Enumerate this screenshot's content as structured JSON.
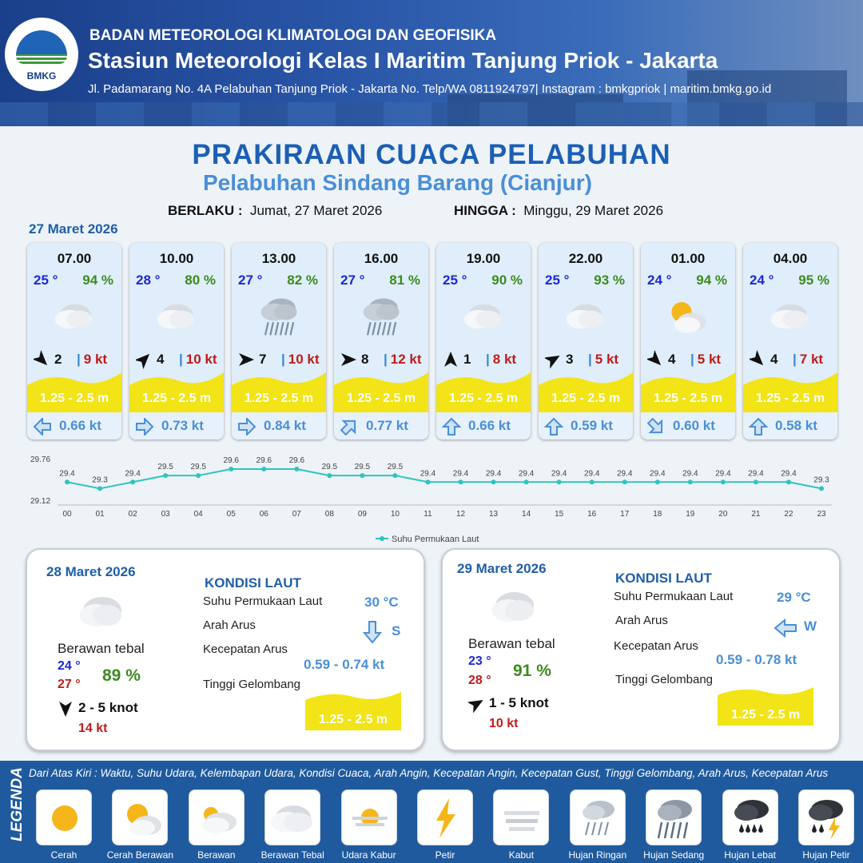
{
  "header": {
    "org": "BADAN METEOROLOGI KLIMATOLOGI DAN GEOFISIKA",
    "station": "Stasiun Meteorologi Kelas I Maritim Tanjung Priok - Jakarta",
    "address": "Jl. Padamarang No. 4A Pelabuhan Tanjung Priok - Jakarta No. Telp/WA 0811924797| Instagram : bmkgpriok | maritim.bmkg.go.id",
    "logo_text": "BMKG"
  },
  "title": "PRAKIRAAN CUACA PELABUHAN",
  "subtitle": "Pelabuhan Sindang Barang (Cianjur)",
  "validity": {
    "from_label": "BERLAKU :",
    "from_value": "Jumat, 27 Maret 2026",
    "to_label": "HINGGA :",
    "to_value": "Minggu, 29 Maret 2026"
  },
  "day1_date": "27 Maret 2026",
  "hourly": [
    {
      "time": "07.00",
      "temp": "25 °",
      "hum": "94 %",
      "wx": "berawan-tebal-icon",
      "wind_dir_deg": 135,
      "wind": "2",
      "gust": "9 kt",
      "wave": "1.25 - 2.5 m",
      "cur_dir_deg": 270,
      "cur": "0.66 kt"
    },
    {
      "time": "10.00",
      "temp": "28 °",
      "hum": "80 %",
      "wx": "berawan-tebal-icon",
      "wind_dir_deg": 45,
      "wind": "4",
      "gust": "10 kt",
      "wave": "1.25 - 2.5 m",
      "cur_dir_deg": 90,
      "cur": "0.73 kt"
    },
    {
      "time": "13.00",
      "temp": "27 °",
      "hum": "82 %",
      "wx": "hujan-ringan-icon",
      "wind_dir_deg": 90,
      "wind": "7",
      "gust": "10 kt",
      "wave": "1.25 - 2.5 m",
      "cur_dir_deg": 90,
      "cur": "0.84 kt"
    },
    {
      "time": "16.00",
      "temp": "27 °",
      "hum": "81 %",
      "wx": "hujan-ringan-icon",
      "wind_dir_deg": 90,
      "wind": "8",
      "gust": "12 kt",
      "wave": "1.25 - 2.5 m",
      "cur_dir_deg": 45,
      "cur": "0.77 kt"
    },
    {
      "time": "19.00",
      "temp": "25 °",
      "hum": "90 %",
      "wx": "berawan-tebal-icon",
      "wind_dir_deg": 0,
      "wind": "1",
      "gust": "8 kt",
      "wave": "1.25 - 2.5 m",
      "cur_dir_deg": 0,
      "cur": "0.66 kt"
    },
    {
      "time": "22.00",
      "temp": "25 °",
      "hum": "93 %",
      "wx": "berawan-tebal-icon",
      "wind_dir_deg": 60,
      "wind": "3",
      "gust": "5 kt",
      "wave": "1.25 - 2.5 m",
      "cur_dir_deg": 0,
      "cur": "0.59 kt"
    },
    {
      "time": "01.00",
      "temp": "24 °",
      "hum": "94 %",
      "wx": "cerah-berawan-icon",
      "wind_dir_deg": 135,
      "wind": "4",
      "gust": "5 kt",
      "wave": "1.25 - 2.5 m",
      "cur_dir_deg": 135,
      "cur": "0.60 kt"
    },
    {
      "time": "04.00",
      "temp": "24 °",
      "hum": "95 %",
      "wx": "berawan-tebal-icon",
      "wind_dir_deg": 135,
      "wind": "4",
      "gust": "7 kt",
      "wave": "1.25 - 2.5 m",
      "cur_dir_deg": 0,
      "cur": "0.58 kt"
    }
  ],
  "chart_data": {
    "type": "line",
    "categories": [
      "00",
      "01",
      "02",
      "03",
      "04",
      "05",
      "06",
      "07",
      "08",
      "09",
      "10",
      "11",
      "12",
      "13",
      "14",
      "15",
      "16",
      "17",
      "18",
      "19",
      "20",
      "21",
      "22",
      "23"
    ],
    "series": [
      {
        "name": "Suhu Permukaan Laut",
        "values": [
          29.4,
          29.3,
          29.4,
          29.5,
          29.5,
          29.6,
          29.6,
          29.6,
          29.5,
          29.5,
          29.5,
          29.4,
          29.4,
          29.4,
          29.4,
          29.4,
          29.4,
          29.4,
          29.4,
          29.4,
          29.4,
          29.4,
          29.4,
          29.3
        ],
        "color": "#2ec4c0"
      }
    ],
    "data_labels": [
      "29.4",
      "29.3",
      "29.4",
      "29.5",
      "29.5",
      "29.6",
      "29.6",
      "29.6",
      "29.5",
      "29.5",
      "29.5",
      "29.4",
      "29.4",
      "29.4",
      "29.4",
      "29.4",
      "29.4",
      "29.4",
      "29.4",
      "29.4",
      "29.4",
      "29.4",
      "29.4",
      "29.3"
    ],
    "y_min_label": "29.12",
    "y_max_label": "29.76",
    "ylim": [
      29.12,
      29.76
    ],
    "legend": "bottom-center",
    "grid": false
  },
  "day2": {
    "date": "28 Maret 2026",
    "condition": "Berawan tebal",
    "tmin": "24 °",
    "tmax": "27 °",
    "hum": "89 %",
    "wind_dir_deg": 180,
    "wind": "2  - 5 knot",
    "gust": "14 kt",
    "kondisi_title": "KONDISI LAUT",
    "sst_label": "Suhu Permukaan Laut",
    "sst": "30 °C",
    "cur_dir_label": "Arah Arus",
    "cur_dir": "S",
    "cur_speed_label": "Kecepatan Arus",
    "cur_speed": "0.59  - 0.74 kt",
    "wave_label": "Tinggi Gelombang",
    "wave": "1.25 - 2.5 m"
  },
  "day3": {
    "date": "29 Maret 2026",
    "condition": "Berawan tebal",
    "tmin": "23 °",
    "tmax": "28 °",
    "hum": "91 %",
    "wind_dir_deg": 60,
    "wind": "1  - 5 knot",
    "gust": "10 kt",
    "kondisi_title": "KONDISI LAUT",
    "sst_label": "Suhu Permukaan Laut",
    "sst": "29 °C",
    "cur_dir_label": "Arah Arus",
    "cur_dir": "W",
    "cur_speed_label": "Kecepatan Arus",
    "cur_speed": "0.59  - 0.78 kt",
    "wave_label": "Tinggi Gelombang",
    "wave": "1.25 - 2.5 m"
  },
  "legend": {
    "title": "LEGENDA",
    "description": "Dari Atas Kiri : Waktu, Suhu Udara, Kelembapan Udara, Kondisi Cuaca, Arah Angin, Kecepatan Angin, Kecepatan Gust, Tinggi Gelombang, Arah Arus, Kecepatan Arus",
    "items": [
      "Cerah",
      "Cerah Berawan",
      "Berawan",
      "Berawan Tebal",
      "Udara Kabur",
      "Petir",
      "Kabut",
      "Hujan Ringan",
      "Hujan Sedang",
      "Hujan Lebat",
      "Hujan Petir"
    ]
  },
  "colors": {
    "title": "#1b5fb5",
    "wave": "#f2e417",
    "temp": "#1d28d6",
    "humidity": "#3d8a1f",
    "gust": "#c01b1b",
    "current": "#4a8fd6"
  }
}
